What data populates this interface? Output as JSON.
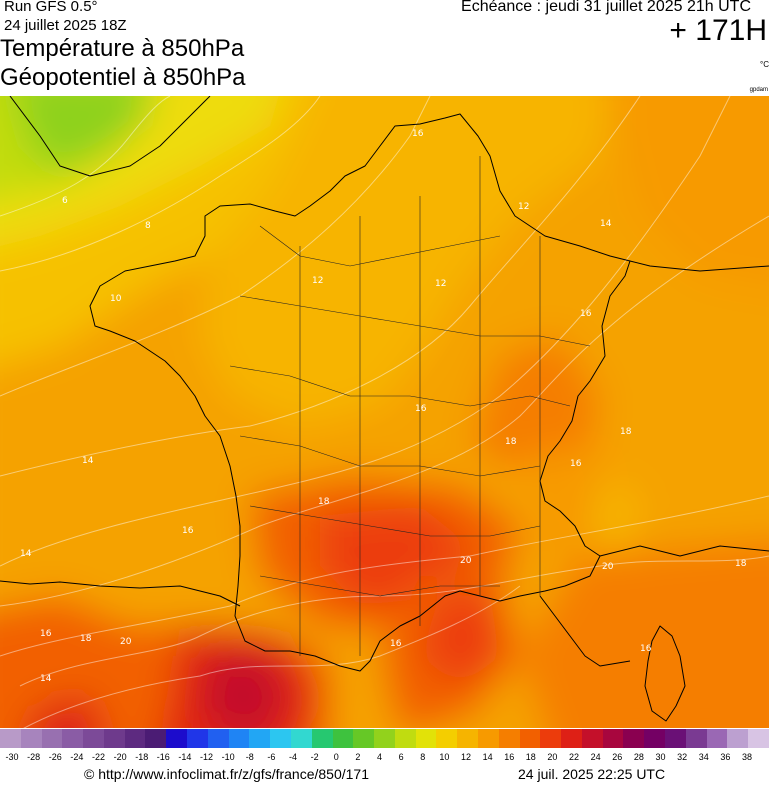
{
  "header": {
    "run_label": "Run GFS 0.5°",
    "run_date": "24 juillet 2025 18Z",
    "title_line1": "Température à 850hPa",
    "title_line2": "Géopotentiel à 850hPa",
    "echeance": "Echéance : jeudi 31 juillet 2025 21h UTC",
    "lead_time": "+ 171H",
    "unit": "°C",
    "credit_small": "gpdam"
  },
  "map": {
    "isotherm_labels": [
      "6",
      "8",
      "10",
      "12",
      "12",
      "12",
      "14",
      "14",
      "14",
      "16",
      "16",
      "16",
      "16",
      "16",
      "16",
      "18",
      "18",
      "18",
      "18",
      "20",
      "20",
      "20",
      "14",
      "16",
      "16",
      "18"
    ]
  },
  "legend": {
    "values": [
      "-30",
      "-28",
      "-26",
      "-24",
      "-22",
      "-20",
      "-18",
      "-16",
      "-14",
      "-12",
      "-10",
      "-8",
      "-6",
      "-4",
      "-2",
      "0",
      "2",
      "4",
      "6",
      "8",
      "10",
      "12",
      "14",
      "16",
      "18",
      "20",
      "22",
      "24",
      "26",
      "28",
      "30",
      "32",
      "34",
      "36",
      "38"
    ],
    "colors": [
      "#b89ac8",
      "#a784bd",
      "#9870b0",
      "#8a5ca5",
      "#7c4a98",
      "#6e3a8c",
      "#5d2a80",
      "#4b1c74",
      "#1c0ccc",
      "#2036e8",
      "#2160f0",
      "#1f84f4",
      "#22a6f4",
      "#2cc6f0",
      "#32d8d0",
      "#26c870",
      "#3ec23e",
      "#66c826",
      "#92d21c",
      "#c0dc10",
      "#e2e208",
      "#f4ce00",
      "#f6b400",
      "#f79a00",
      "#f57e00",
      "#f26000",
      "#ec3c0c",
      "#de2016",
      "#c4102a",
      "#a8063e",
      "#8a0050",
      "#740064",
      "#6a1076",
      "#7a3a92",
      "#9a68b4",
      "#bca0d0",
      "#d8c4e4"
    ]
  },
  "footer": {
    "url": "© http://www.infoclimat.fr/z/gfs/france/850/171",
    "date": "24 juil. 2025 22:25 UTC"
  }
}
